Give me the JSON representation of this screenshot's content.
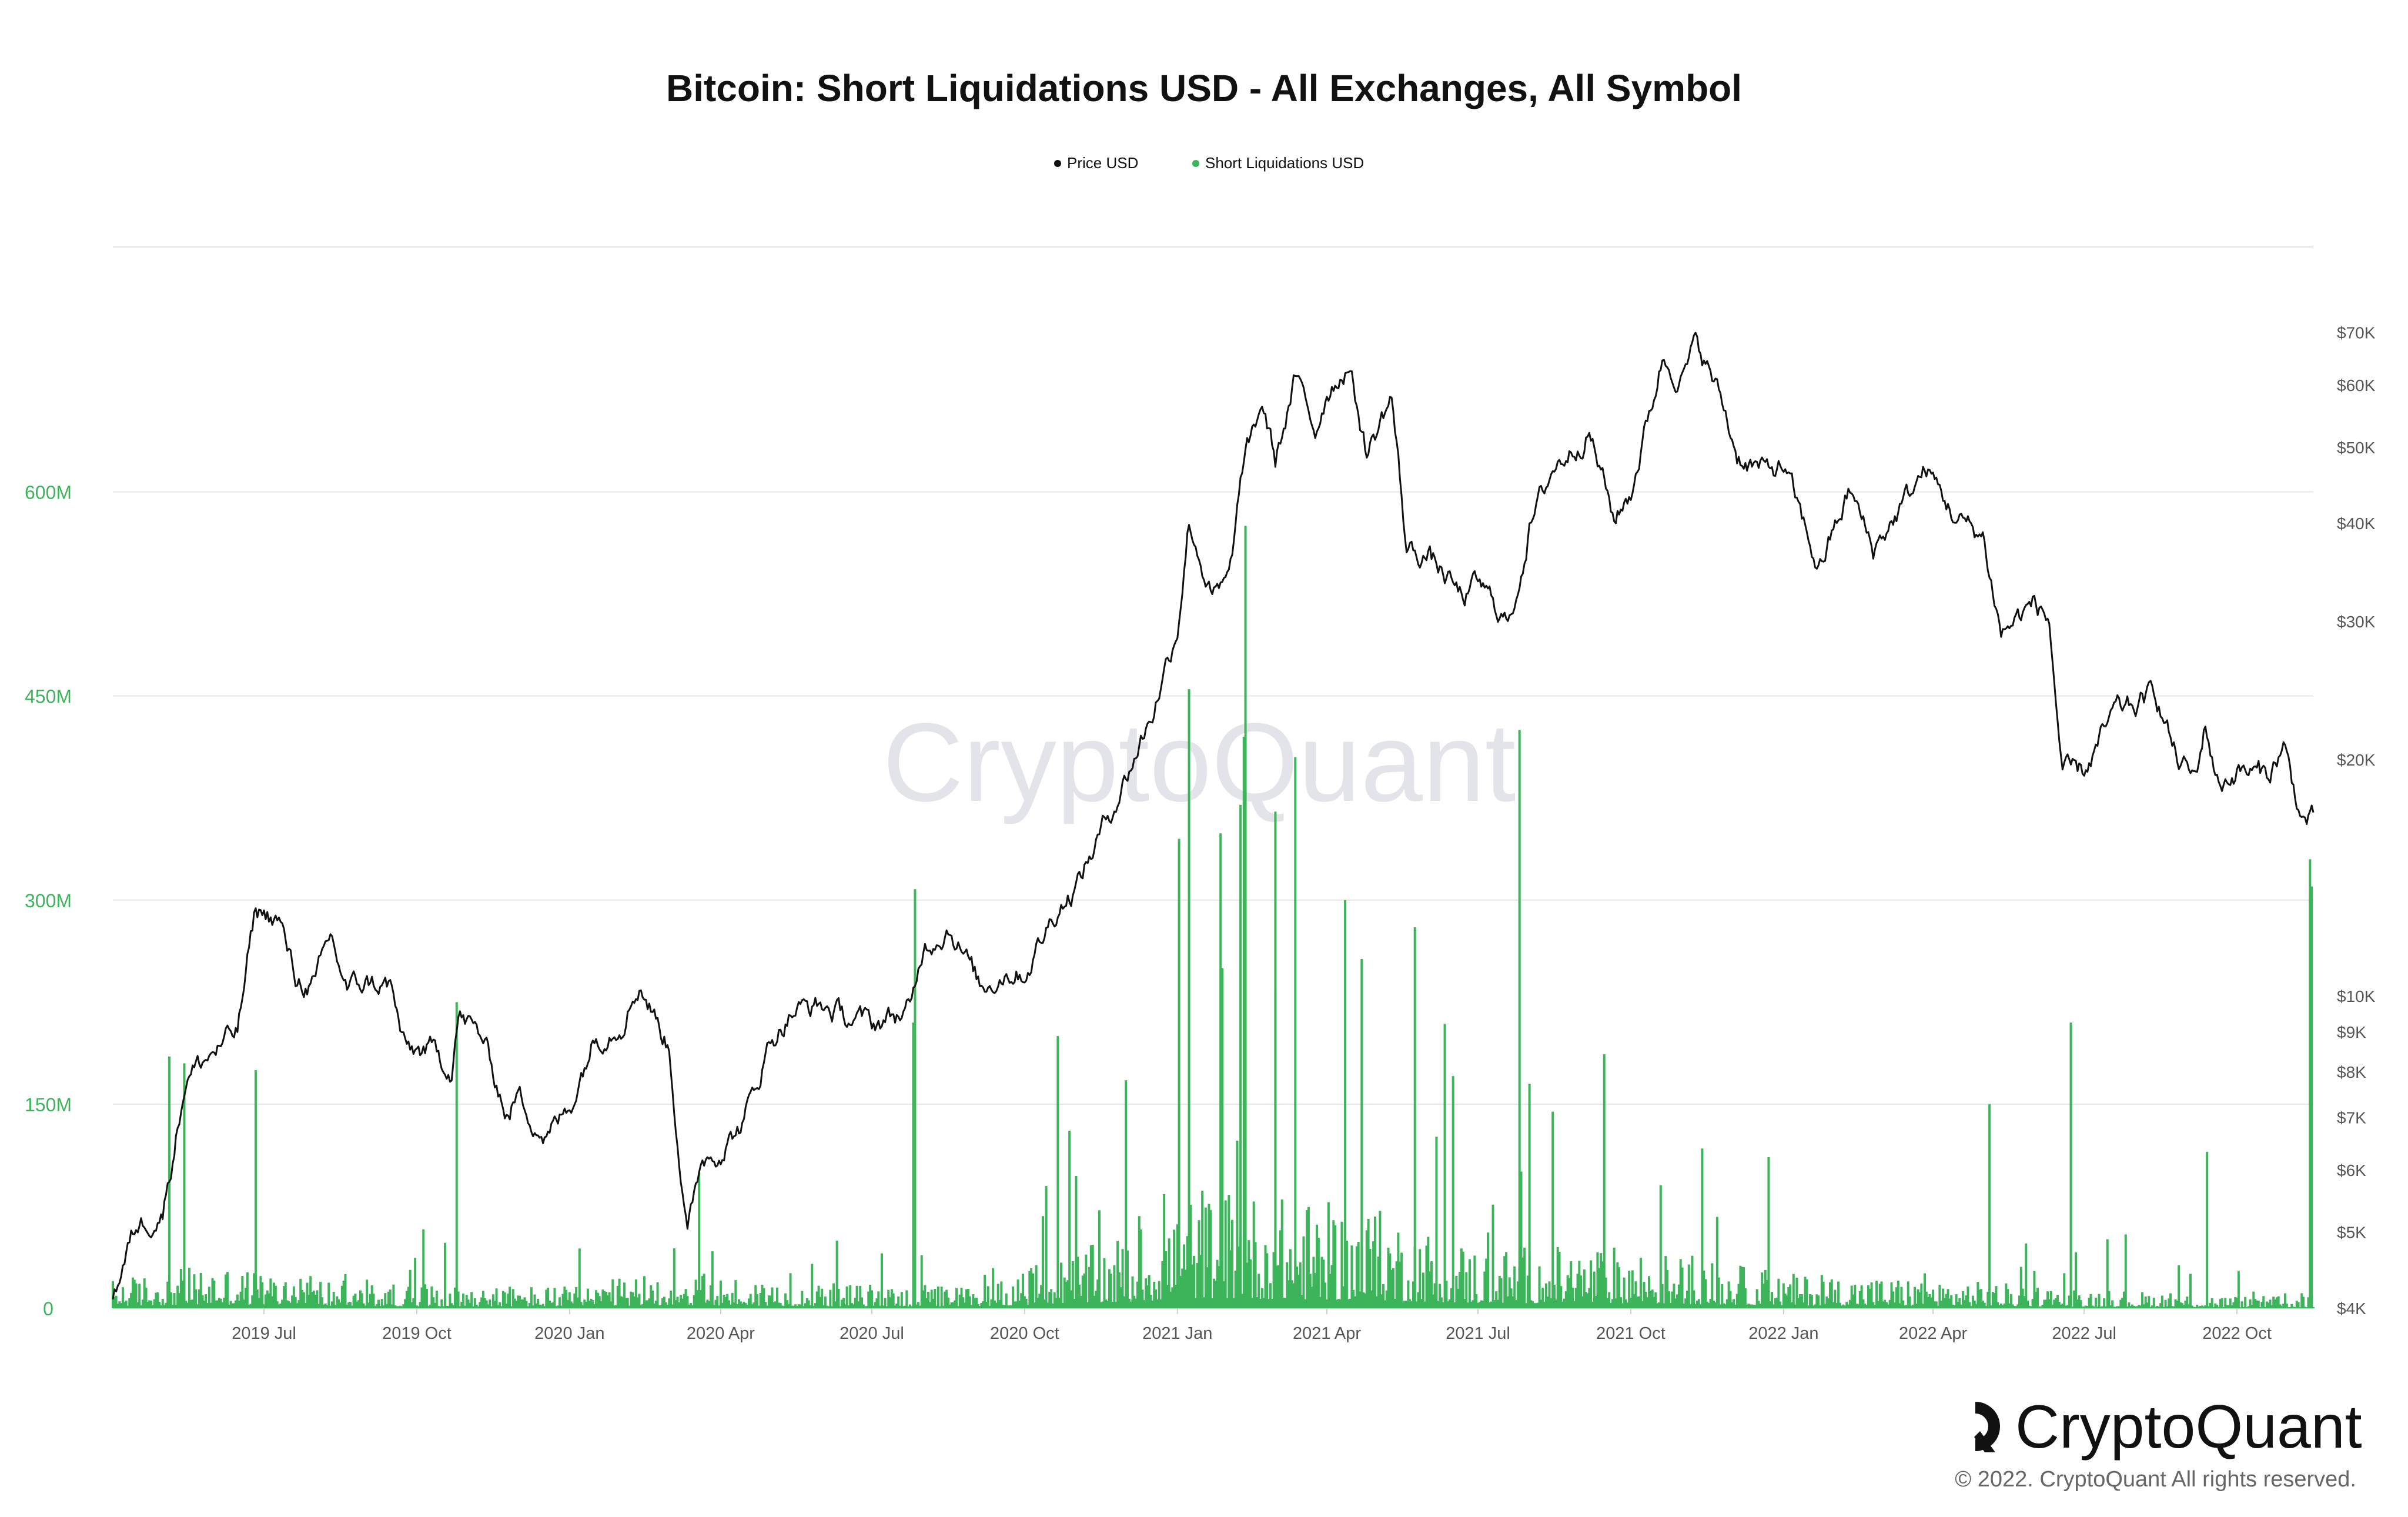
{
  "chart_data": {
    "type": "bar",
    "title": "Bitcoin: Short Liquidations USD - All Exchanges, All Symbol",
    "legend": [
      {
        "name": "Price USD",
        "color": "#111111",
        "marker": "dot"
      },
      {
        "name": "Short Liquidations USD",
        "color": "#3cb55a",
        "marker": "dot"
      }
    ],
    "legend_placement": "top-center",
    "grid": true,
    "x_axis": {
      "type": "date",
      "range": [
        "2019-04-01",
        "2022-11-16"
      ],
      "ticks": [
        {
          "date": "2019-07-01",
          "label": "2019 Jul"
        },
        {
          "date": "2019-10-01",
          "label": "2019 Oct"
        },
        {
          "date": "2020-01-01",
          "label": "2020 Jan"
        },
        {
          "date": "2020-04-01",
          "label": "2020 Apr"
        },
        {
          "date": "2020-07-01",
          "label": "2020 Jul"
        },
        {
          "date": "2020-10-01",
          "label": "2020 Oct"
        },
        {
          "date": "2021-01-01",
          "label": "2021 Jan"
        },
        {
          "date": "2021-04-01",
          "label": "2021 Apr"
        },
        {
          "date": "2021-07-01",
          "label": "2021 Jul"
        },
        {
          "date": "2021-10-01",
          "label": "2021 Oct"
        },
        {
          "date": "2022-01-01",
          "label": "2022 Jan"
        },
        {
          "date": "2022-04-01",
          "label": "2022 Apr"
        },
        {
          "date": "2022-07-01",
          "label": "2022 Jul"
        },
        {
          "date": "2022-10-01",
          "label": "2022 Oct"
        }
      ]
    },
    "y_left": {
      "scale": "linear",
      "range": [
        0,
        780000000
      ],
      "color": "#3cb55a",
      "ticks": [
        {
          "value": 0,
          "label": "0"
        },
        {
          "value": 150000000,
          "label": "150M"
        },
        {
          "value": 300000000,
          "label": "300M"
        },
        {
          "value": 450000000,
          "label": "450M"
        },
        {
          "value": 600000000,
          "label": "600M"
        }
      ]
    },
    "y_right": {
      "scale": "log",
      "range": [
        4000,
        90000
      ],
      "color": "#555555",
      "ticks": [
        {
          "value": 4000,
          "label": "$4K"
        },
        {
          "value": 5000,
          "label": "$5K"
        },
        {
          "value": 6000,
          "label": "$6K"
        },
        {
          "value": 7000,
          "label": "$7K"
        },
        {
          "value": 8000,
          "label": "$8K"
        },
        {
          "value": 9000,
          "label": "$9K"
        },
        {
          "value": 10000,
          "label": "$10K"
        },
        {
          "value": 20000,
          "label": "$20K"
        },
        {
          "value": 30000,
          "label": "$30K"
        },
        {
          "value": 40000,
          "label": "$40K"
        },
        {
          "value": 50000,
          "label": "$50K"
        },
        {
          "value": 60000,
          "label": "$60K"
        },
        {
          "value": 70000,
          "label": "$70K"
        }
      ]
    },
    "series": [
      {
        "name": "Price USD",
        "kind": "line",
        "axis": "right",
        "color": "#111111",
        "points": [
          [
            "2019-04-01",
            4100
          ],
          [
            "2019-04-15",
            5100
          ],
          [
            "2019-05-01",
            5300
          ],
          [
            "2019-05-15",
            7900
          ],
          [
            "2019-06-01",
            8500
          ],
          [
            "2019-06-15",
            9000
          ],
          [
            "2019-06-26",
            12900
          ],
          [
            "2019-07-10",
            12500
          ],
          [
            "2019-07-20",
            10500
          ],
          [
            "2019-08-01",
            10300
          ],
          [
            "2019-08-10",
            11900
          ],
          [
            "2019-08-20",
            10200
          ],
          [
            "2019-09-01",
            10400
          ],
          [
            "2019-09-15",
            10300
          ],
          [
            "2019-09-24",
            8500
          ],
          [
            "2019-10-10",
            8500
          ],
          [
            "2019-10-22",
            8100
          ],
          [
            "2019-10-26",
            9500
          ],
          [
            "2019-11-10",
            8800
          ],
          [
            "2019-11-25",
            7000
          ],
          [
            "2019-12-01",
            7500
          ],
          [
            "2019-12-18",
            6600
          ],
          [
            "2020-01-01",
            7200
          ],
          [
            "2020-01-15",
            8800
          ],
          [
            "2020-02-01",
            9300
          ],
          [
            "2020-02-12",
            10400
          ],
          [
            "2020-03-01",
            8600
          ],
          [
            "2020-03-12",
            4900
          ],
          [
            "2020-03-20",
            6200
          ],
          [
            "2020-04-01",
            6400
          ],
          [
            "2020-04-15",
            6900
          ],
          [
            "2020-05-01",
            8800
          ],
          [
            "2020-05-15",
            9600
          ],
          [
            "2020-06-01",
            9700
          ],
          [
            "2020-06-15",
            9400
          ],
          [
            "2020-07-01",
            9200
          ],
          [
            "2020-07-25",
            9600
          ],
          [
            "2020-08-01",
            11600
          ],
          [
            "2020-08-17",
            12300
          ],
          [
            "2020-09-05",
            10200
          ],
          [
            "2020-09-20",
            10800
          ],
          [
            "2020-10-01",
            10700
          ],
          [
            "2020-10-21",
            13000
          ],
          [
            "2020-11-01",
            13800
          ],
          [
            "2020-11-15",
            16000
          ],
          [
            "2020-12-01",
            19000
          ],
          [
            "2020-12-17",
            23000
          ],
          [
            "2021-01-01",
            29500
          ],
          [
            "2021-01-08",
            40500
          ],
          [
            "2021-01-22",
            32000
          ],
          [
            "2021-02-01",
            33500
          ],
          [
            "2021-02-09",
            46500
          ],
          [
            "2021-02-21",
            57000
          ],
          [
            "2021-03-01",
            48000
          ],
          [
            "2021-03-13",
            61000
          ],
          [
            "2021-03-25",
            52500
          ],
          [
            "2021-04-01",
            59000
          ],
          [
            "2021-04-14",
            64000
          ],
          [
            "2021-04-25",
            49000
          ],
          [
            "2021-05-10",
            58000
          ],
          [
            "2021-05-19",
            37000
          ],
          [
            "2021-06-01",
            36500
          ],
          [
            "2021-06-22",
            32000
          ],
          [
            "2021-07-01",
            33500
          ],
          [
            "2021-07-20",
            29800
          ],
          [
            "2021-08-01",
            39500
          ],
          [
            "2021-08-15",
            47000
          ],
          [
            "2021-09-06",
            52600
          ],
          [
            "2021-09-21",
            40500
          ],
          [
            "2021-10-01",
            43800
          ],
          [
            "2021-10-20",
            65000
          ],
          [
            "2021-11-01",
            61500
          ],
          [
            "2021-11-10",
            68000
          ],
          [
            "2021-11-25",
            57000
          ],
          [
            "2021-12-04",
            49000
          ],
          [
            "2021-12-20",
            46500
          ],
          [
            "2022-01-01",
            47300
          ],
          [
            "2022-01-22",
            35000
          ],
          [
            "2022-02-10",
            44000
          ],
          [
            "2022-02-24",
            37000
          ],
          [
            "2022-03-28",
            47000
          ],
          [
            "2022-04-15",
            40500
          ],
          [
            "2022-05-01",
            38500
          ],
          [
            "2022-05-12",
            29000
          ],
          [
            "2022-06-01",
            31700
          ],
          [
            "2022-06-10",
            30000
          ],
          [
            "2022-06-18",
            19000
          ],
          [
            "2022-07-01",
            19300
          ],
          [
            "2022-07-20",
            23000
          ],
          [
            "2022-08-01",
            23300
          ],
          [
            "2022-08-13",
            24400
          ],
          [
            "2022-08-26",
            20000
          ],
          [
            "2022-09-06",
            18900
          ],
          [
            "2022-09-12",
            22200
          ],
          [
            "2022-09-20",
            18500
          ],
          [
            "2022-10-01",
            19400
          ],
          [
            "2022-10-20",
            19100
          ],
          [
            "2022-10-29",
            20800
          ],
          [
            "2022-11-09",
            16800
          ],
          [
            "2022-11-16",
            16700
          ]
        ]
      },
      {
        "name": "Short Liquidations USD",
        "kind": "bar",
        "axis": "left",
        "color": "#3cb55a",
        "spikes": [
          [
            "2019-05-05",
            185000000
          ],
          [
            "2019-05-14",
            180000000
          ],
          [
            "2019-06-26",
            175000000
          ],
          [
            "2019-10-25",
            225000000
          ],
          [
            "2020-03-19",
            100000000
          ],
          [
            "2020-07-26",
            210000000
          ],
          [
            "2020-07-27",
            308000000
          ],
          [
            "2020-10-21",
            200000000
          ],
          [
            "2021-01-02",
            345000000
          ],
          [
            "2021-01-08",
            455000000
          ],
          [
            "2021-01-28",
            250000000
          ],
          [
            "2021-02-08",
            370000000
          ],
          [
            "2021-02-10",
            420000000
          ],
          [
            "2021-02-11",
            575000000
          ],
          [
            "2021-03-01",
            365000000
          ],
          [
            "2021-03-13",
            405000000
          ],
          [
            "2021-04-12",
            300000000
          ],
          [
            "2021-05-24",
            280000000
          ],
          [
            "2021-07-26",
            425000000
          ],
          [
            "2021-08-01",
            165000000
          ],
          [
            "2022-05-05",
            150000000
          ],
          [
            "2022-06-23",
            210000000
          ],
          [
            "2022-09-13",
            115000000
          ],
          [
            "2022-11-14",
            330000000
          ],
          [
            "2022-11-15",
            310000000
          ]
        ],
        "baseline": [
          [
            "2019-04-01",
            12000000
          ],
          [
            "2019-06-01",
            18000000
          ],
          [
            "2019-09-01",
            10000000
          ],
          [
            "2020-01-01",
            9000000
          ],
          [
            "2020-03-01",
            15000000
          ],
          [
            "2020-06-01",
            10000000
          ],
          [
            "2020-09-01",
            9000000
          ],
          [
            "2020-12-01",
            30000000
          ],
          [
            "2021-01-15",
            50000000
          ],
          [
            "2021-03-01",
            45000000
          ],
          [
            "2021-05-01",
            40000000
          ],
          [
            "2021-07-01",
            25000000
          ],
          [
            "2021-10-01",
            25000000
          ],
          [
            "2022-01-01",
            14000000
          ],
          [
            "2022-04-01",
            12000000
          ],
          [
            "2022-07-01",
            8000000
          ],
          [
            "2022-10-01",
            5000000
          ],
          [
            "2022-11-16",
            5000000
          ]
        ]
      }
    ]
  },
  "watermark": "CryptoQuant",
  "brand": {
    "name": "CryptoQuant",
    "copyright": "© 2022. CryptoQuant All rights reserved."
  }
}
